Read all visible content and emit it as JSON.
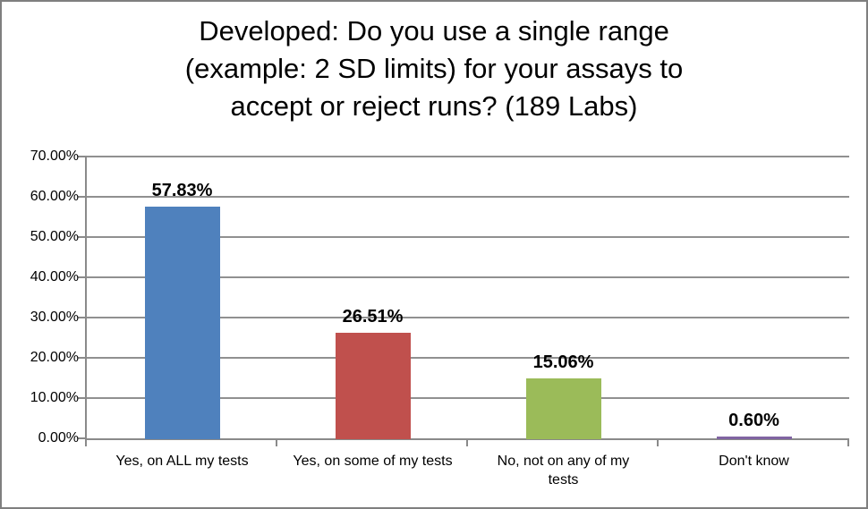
{
  "window": {
    "background": "#FFFFFF",
    "border_color": "#7F7F7F"
  },
  "chart_data": {
    "type": "bar",
    "title": "Developed: Do you use a single range (example: 2 SD limits) for your assays to accept or reject runs? (189 Labs)",
    "title_lines": [
      "Developed: Do you use a single range",
      "(example: 2 SD limits) for your assays to",
      "accept or reject runs? (189 Labs)"
    ],
    "categories": [
      "Yes, on ALL my tests",
      "Yes, on some of my tests",
      "No, not on any of my tests",
      "Don't know"
    ],
    "values": [
      57.83,
      26.51,
      15.06,
      0.6
    ],
    "value_labels": [
      "57.83%",
      "26.51%",
      "15.06%",
      "0.60%"
    ],
    "bar_colors": [
      "#4F81BD",
      "#C0504D",
      "#9BBB59",
      "#8064A2"
    ],
    "xlabel": "",
    "ylabel": "",
    "ylim": [
      0,
      70
    ],
    "yticks": [
      {
        "value": 0,
        "label": "0.00%"
      },
      {
        "value": 10,
        "label": "10.00%"
      },
      {
        "value": 20,
        "label": "20.00%"
      },
      {
        "value": 30,
        "label": "30.00%"
      },
      {
        "value": 40,
        "label": "40.00%"
      },
      {
        "value": 50,
        "label": "50.00%"
      },
      {
        "value": 60,
        "label": "60.00%"
      },
      {
        "value": 70,
        "label": "70.00%"
      }
    ],
    "grid": true,
    "legend": "none",
    "colors": {
      "gridline": "#909090",
      "axis": "#8A8A8A",
      "text": "#000000"
    }
  }
}
